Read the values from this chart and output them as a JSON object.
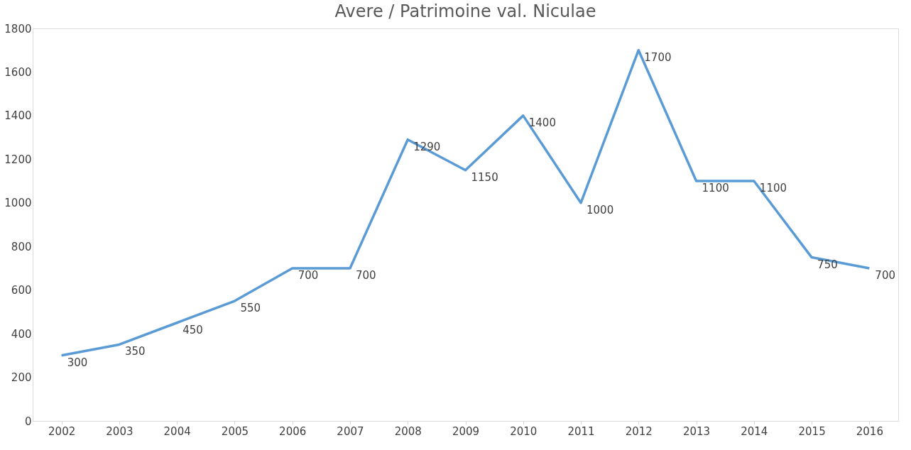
{
  "chart_data": {
    "type": "line",
    "title": "Avere / Patrimoine val. Niculae",
    "categories": [
      "2002",
      "2003",
      "2004",
      "2005",
      "2006",
      "2007",
      "2008",
      "2009",
      "2010",
      "2011",
      "2012",
      "2013",
      "2014",
      "2015",
      "2016"
    ],
    "series": [
      {
        "color": "#5b9bd5",
        "values": [
          300,
          350,
          450,
          550,
          700,
          700,
          1290,
          1150,
          1400,
          1000,
          1700,
          1100,
          1100,
          750,
          700
        ]
      }
    ],
    "ylim": [
      0,
      1800
    ],
    "yticks": [
      0,
      200,
      400,
      600,
      800,
      1000,
      1200,
      1400,
      1600,
      1800
    ],
    "data_labels": true,
    "grid": false,
    "legend": false,
    "marker": "none",
    "line_style": "solid"
  }
}
